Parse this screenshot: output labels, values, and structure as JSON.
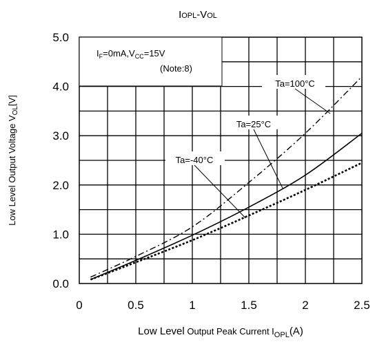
{
  "chart_data": {
    "type": "line",
    "title": {
      "parts": [
        {
          "t": "I",
          "sub": false
        },
        {
          "t": "OPL",
          "sub": false
        },
        {
          "t": "-V",
          "sub": false
        },
        {
          "t": "OL",
          "sub": false
        }
      ]
    },
    "xlabel": {
      "main": "Low Level",
      "rest": " Output Peak Current I",
      "sub": "OPL",
      "unit": "(A)"
    },
    "ylabel": {
      "main": "Low Level Output Voltage V",
      "sub": "OL",
      "unit": "[V]"
    },
    "xlim": [
      0,
      2.5
    ],
    "ylim": [
      0,
      5.0
    ],
    "x_ticks": [
      0,
      0.5,
      1,
      1.5,
      2,
      2.5
    ],
    "x_tick_labels": [
      "0",
      "0.5",
      "1",
      "1.5",
      "2",
      "2.5"
    ],
    "y_ticks": [
      0,
      1,
      2,
      3,
      4,
      5
    ],
    "y_tick_labels": [
      "0.0",
      "1.0",
      "2.0",
      "3.0",
      "4.0",
      "5.0"
    ],
    "grid": true,
    "grid_x_step": 0.25,
    "grid_y_step": 0.5,
    "condition_box": {
      "line1_a": "I",
      "line1_a_sub": "F",
      "line1_b": "=0mA,V",
      "line1_b_sub": "CC",
      "line1_c": "=15V",
      "line2": "(Note:8)"
    },
    "series": [
      {
        "name": "Ta=100°C",
        "style": "dashdot",
        "x": [
          0.1,
          0.5,
          1.0,
          1.5,
          2.0,
          2.5
        ],
        "y": [
          0.13,
          0.55,
          1.15,
          2.05,
          3.05,
          4.2
        ]
      },
      {
        "name": "Ta=25°C",
        "style": "solid",
        "x": [
          0.1,
          0.5,
          1.0,
          1.5,
          2.0,
          2.5
        ],
        "y": [
          0.08,
          0.47,
          0.98,
          1.55,
          2.2,
          3.05
        ]
      },
      {
        "name": "Ta=-40°C",
        "style": "dotted",
        "x": [
          0.1,
          0.5,
          1.0,
          1.5,
          2.0,
          2.5
        ],
        "y": [
          0.08,
          0.43,
          0.88,
          1.38,
          1.9,
          2.45
        ]
      }
    ]
  }
}
